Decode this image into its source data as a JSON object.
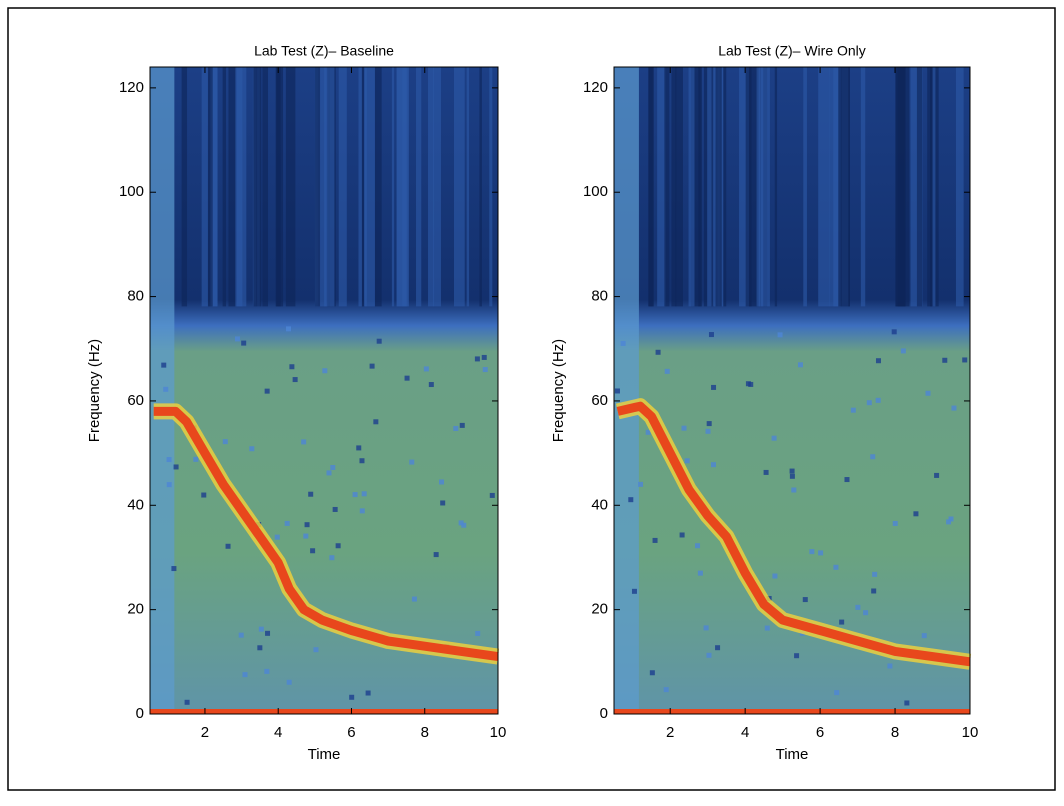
{
  "chart_data": [
    {
      "type": "spectrogram",
      "title": "Lab Test (Z)– Baseline",
      "xlabel": "Time",
      "ylabel": "Frequency (Hz)",
      "xlim": [
        0.5,
        10
      ],
      "ylim": [
        0,
        124
      ],
      "xticks": [
        2,
        4,
        6,
        8,
        10
      ],
      "yticks": [
        0,
        20,
        40,
        60,
        80,
        100,
        120
      ],
      "color": "#e8471c",
      "x": [
        0.6,
        1.2,
        1.5,
        2,
        2.5,
        3,
        3.5,
        4,
        4.3,
        4.7,
        5.2,
        6,
        7,
        8,
        9,
        10
      ],
      "values": [
        58,
        58,
        56,
        50,
        44,
        39,
        34,
        29,
        24,
        20,
        18,
        16,
        14,
        13,
        12,
        11
      ]
    },
    {
      "type": "spectrogram",
      "title": "Lab Test (Z)– Wire Only",
      "xlabel": "Time",
      "ylabel": "Frequency (Hz)",
      "xlim": [
        0.5,
        10
      ],
      "ylim": [
        0,
        124
      ],
      "xticks": [
        2,
        4,
        6,
        8,
        10
      ],
      "yticks": [
        0,
        20,
        40,
        60,
        80,
        100,
        120
      ],
      "color": "#e8471c",
      "x": [
        0.6,
        1.2,
        1.5,
        2,
        2.5,
        3,
        3.5,
        4,
        4.5,
        5,
        6,
        7,
        8,
        9,
        10
      ],
      "values": [
        58,
        59,
        57,
        50,
        43,
        38,
        34,
        27,
        21,
        18,
        16,
        14,
        12,
        11,
        10
      ]
    }
  ]
}
